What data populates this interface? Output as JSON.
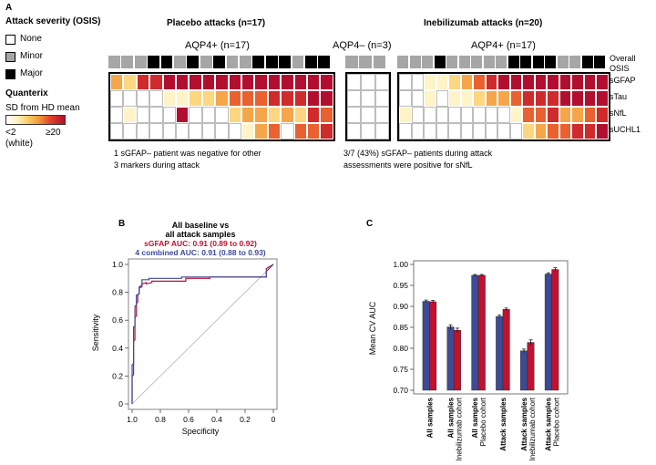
{
  "panelA": {
    "label": "A",
    "legend": {
      "title": "Attack severity (OSIS)",
      "items": [
        {
          "label": "None",
          "color": "#ffffff"
        },
        {
          "label": "Minor",
          "color": "#a6a6a6"
        },
        {
          "label": "Major",
          "color": "#000000"
        }
      ],
      "quanterix_title": "Quanterix",
      "scale_label": "SD from HD mean",
      "scale_low": "<2",
      "scale_low_note": "(white)",
      "scale_high": "≥20"
    },
    "groups": [
      {
        "title": "Placebo attacks (n=17)",
        "cohorts": [
          {
            "title": "AQP4+ (n=17)",
            "severity": [
              1,
              1,
              1,
              2,
              2,
              1,
              2,
              1,
              2,
              1,
              1,
              2,
              2,
              2,
              1,
              2,
              2
            ],
            "rows": [
              [
                3,
                2,
                5,
                5,
                6,
                6,
                6,
                6,
                6,
                6,
                6,
                6,
                6,
                6,
                6,
                6,
                6
              ],
              [
                0,
                0,
                0,
                0,
                1,
                1,
                2,
                2,
                3,
                4,
                4,
                4,
                5,
                5,
                5,
                6,
                6
              ],
              [
                0,
                1,
                0,
                0,
                0,
                6,
                0,
                0,
                0,
                2,
                3,
                3,
                2,
                3,
                2,
                5,
                4
              ],
              [
                0,
                0,
                0,
                0,
                0,
                0,
                0,
                0,
                0,
                0,
                1,
                3,
                4,
                0,
                4,
                4,
                5
              ]
            ]
          }
        ]
      },
      {
        "title": "Inebilizumab attacks (n=20)",
        "cohorts": [
          {
            "title": "AQP4– (n=3)",
            "severity": [
              1,
              1,
              1
            ],
            "rows": [
              [
                0,
                0,
                0
              ],
              [
                0,
                0,
                0
              ],
              [
                0,
                0,
                0
              ],
              [
                0,
                0,
                0
              ]
            ]
          },
          {
            "title": "AQP4+ (n=17)",
            "severity": [
              1,
              1,
              1,
              2,
              1,
              1,
              1,
              1,
              1,
              2,
              2,
              2,
              2,
              1,
              1,
              2,
              2
            ],
            "rows": [
              [
                0,
                0,
                1,
                1,
                2,
                3,
                4,
                5,
                6,
                6,
                6,
                6,
                6,
                6,
                6,
                6,
                6
              ],
              [
                0,
                0,
                1,
                0,
                1,
                1,
                2,
                3,
                3,
                4,
                5,
                5,
                5,
                6,
                6,
                6,
                6
              ],
              [
                1,
                0,
                0,
                0,
                0,
                0,
                0,
                0,
                0,
                1,
                4,
                4,
                5,
                3,
                3,
                4,
                5
              ],
              [
                0,
                0,
                0,
                0,
                0,
                0,
                0,
                0,
                0,
                0,
                2,
                3,
                4,
                4,
                5,
                5,
                6
              ]
            ]
          }
        ]
      }
    ],
    "row_labels": [
      "sGFAP",
      "sTau",
      "sNfL",
      "sUCHL1"
    ],
    "osis_label_1": "Overall",
    "osis_label_2": "OSIS",
    "note_left_1": "1 sGFAP– patient was negative for other",
    "note_left_2": "3 markers during attack",
    "note_right_1": "3/7 (43%) sGFAP– patients during attack",
    "note_right_2": "assessments were positive for sNfL",
    "heat_colors": [
      "#ffffff",
      "#fff3c8",
      "#fcd780",
      "#f6a64a",
      "#e8612f",
      "#cf2a2c",
      "#b20f30"
    ]
  },
  "panelB": {
    "label": "B",
    "title_1": "All baseline vs",
    "title_2": "all attack samples",
    "auc_1": "sGFAP AUC: 0.91 (0.89 to 0.92)",
    "auc_2": "4 combined AUC: 0.91 (0.88 to 0.93)",
    "color_1": "#c0122f",
    "color_2": "#3c4a9a",
    "chart_data": {
      "type": "line",
      "title": "All baseline vs all attack samples",
      "xlabel": "Specificity",
      "ylabel": "Sensitivity",
      "xlim": [
        1.0,
        0.0
      ],
      "ylim": [
        0.0,
        1.0
      ],
      "xticks": [
        "1.0",
        "0.8",
        "0.6",
        "0.4",
        "0.2",
        "0"
      ],
      "yticks": [
        "0",
        "0.2",
        "0.4",
        "0.6",
        "0.8",
        "1.0"
      ],
      "series": [
        {
          "name": "sGFAP",
          "x": [
            1.0,
            1.0,
            0.99,
            0.99,
            0.98,
            0.98,
            0.97,
            0.97,
            0.96,
            0.96,
            0.95,
            0.95,
            0.93,
            0.93,
            0.9,
            0.9,
            0.86,
            0.86,
            0.62,
            0.62,
            0.45,
            0.45,
            0.05,
            0.05,
            0.0
          ],
          "y": [
            0,
            0.2,
            0.21,
            0.45,
            0.46,
            0.62,
            0.63,
            0.72,
            0.73,
            0.78,
            0.79,
            0.83,
            0.84,
            0.86,
            0.87,
            0.86,
            0.87,
            0.88,
            0.88,
            0.9,
            0.9,
            0.91,
            0.91,
            0.97,
            1.0
          ]
        },
        {
          "name": "4 combined",
          "x": [
            1.0,
            1.0,
            0.99,
            0.99,
            0.98,
            0.98,
            0.97,
            0.97,
            0.95,
            0.95,
            0.93,
            0.93,
            0.88,
            0.88,
            0.65,
            0.65,
            0.05,
            0.05,
            0.0
          ],
          "y": [
            0,
            0.28,
            0.29,
            0.55,
            0.56,
            0.7,
            0.71,
            0.78,
            0.79,
            0.84,
            0.85,
            0.89,
            0.89,
            0.9,
            0.9,
            0.91,
            0.91,
            0.95,
            1.0
          ]
        }
      ],
      "reference_line": "diagonal"
    }
  },
  "panelC": {
    "label": "C",
    "ylabel": "Mean CV AUC",
    "color_1": "#3d4b95",
    "color_2": "#c0122f",
    "chart_data": {
      "type": "bar",
      "ylabel": "Mean CV AUC",
      "ylim": [
        0.7,
        1.0
      ],
      "yticks": [
        "0.70",
        "0.75",
        "0.80",
        "0.85",
        "0.90",
        "0.95",
        "1.00"
      ],
      "categories": [
        {
          "line1": "All samples",
          "line2": ""
        },
        {
          "line1": "All samples",
          "line2": "Inebilizumab cohort"
        },
        {
          "line1": "All samples",
          "line2": "Placebo cohort"
        },
        {
          "line1": "Attack samples",
          "line2": ""
        },
        {
          "line1": "Attack samples",
          "line2": "Inebilizumab cohort"
        },
        {
          "line1": "Attack samples",
          "line2": "Placebo cohort"
        }
      ],
      "series": [
        {
          "name": "series 1 (blue)",
          "values": [
            0.912,
            0.851,
            0.974,
            0.876,
            0.794,
            0.977
          ],
          "errors": [
            0.003,
            0.005,
            0.002,
            0.003,
            0.004,
            0.003
          ]
        },
        {
          "name": "series 2 (red)",
          "values": [
            0.911,
            0.843,
            0.974,
            0.893,
            0.814,
            0.988
          ],
          "errors": [
            0.003,
            0.005,
            0.002,
            0.003,
            0.006,
            0.004
          ]
        }
      ]
    }
  }
}
